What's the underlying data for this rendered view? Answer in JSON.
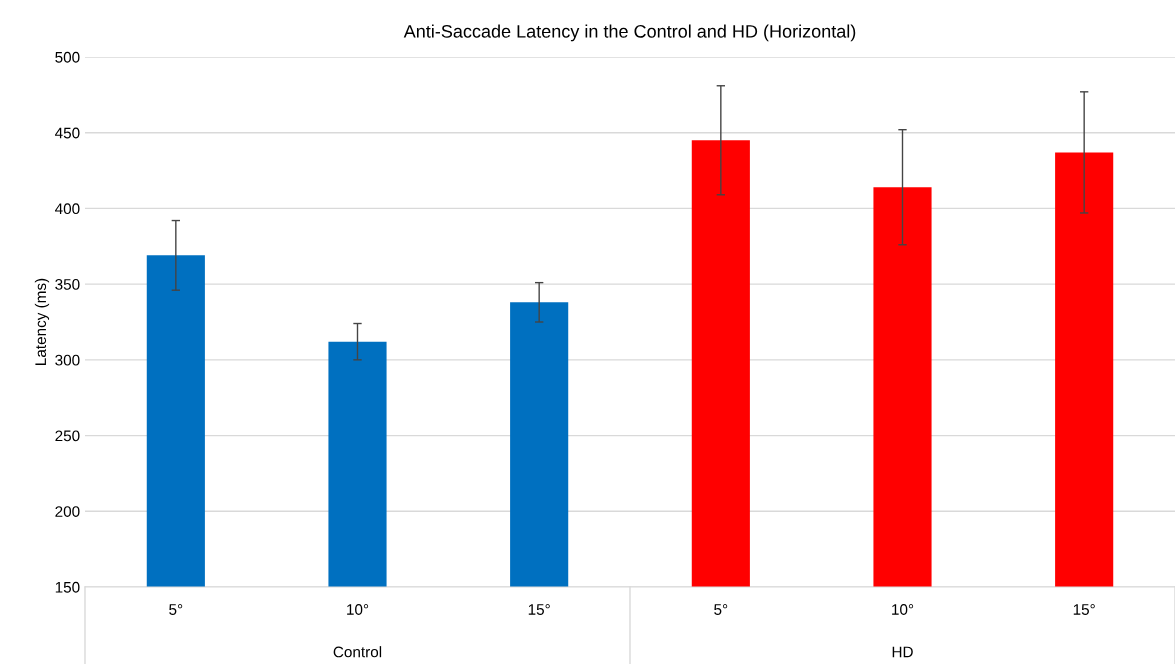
{
  "chart_data": {
    "type": "bar",
    "title": "Anti-Saccade Latency in the Control and HD (Horizontal)",
    "ylabel": "Latency (ms)",
    "categories": [
      "5°",
      "10°",
      "15°",
      "5°",
      "10°",
      "15°"
    ],
    "values": [
      369,
      312,
      338,
      445,
      414,
      437
    ],
    "errors": [
      23,
      12,
      13,
      36,
      38,
      40
    ],
    "colors": [
      "#0070c0",
      "#0070c0",
      "#0070c0",
      "#ff0000",
      "#ff0000",
      "#ff0000"
    ],
    "annotations": [
      "Control",
      "HD"
    ],
    "ylim": [
      150,
      500
    ],
    "yticks": [
      150,
      200,
      250,
      300,
      350,
      400,
      450,
      500
    ],
    "grid": "y",
    "legend": false
  }
}
